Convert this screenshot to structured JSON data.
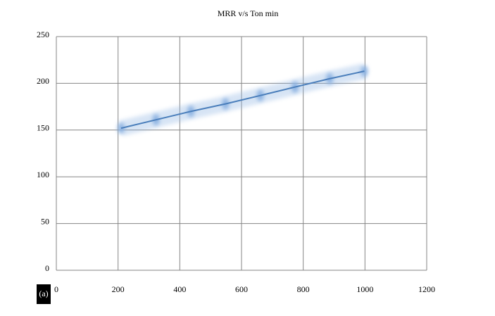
{
  "chart_data": {
    "type": "line",
    "title": "MRR v/s Ton min",
    "annotation": "(a)",
    "x": [
      210,
      323,
      436,
      548,
      661,
      773,
      886,
      998
    ],
    "values": [
      152,
      161,
      170,
      178,
      187,
      196,
      205,
      213
    ],
    "color": "#4a7ebb",
    "marker_color": "#8db3e2",
    "xlim": [
      0,
      1200
    ],
    "xticks": [
      0,
      200,
      400,
      600,
      800,
      1000,
      1200
    ],
    "ylim": [
      0,
      250
    ],
    "yticks": [
      0,
      50,
      100,
      150,
      200,
      250
    ],
    "grid": true
  }
}
